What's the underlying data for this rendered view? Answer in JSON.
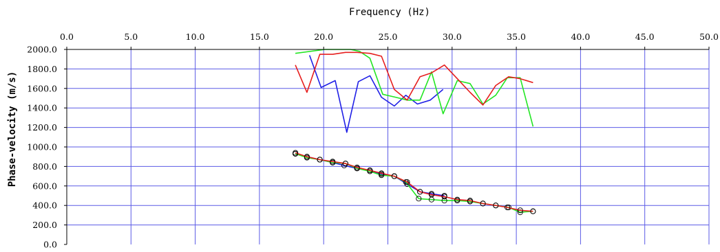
{
  "chart_data": {
    "type": "line",
    "title": "",
    "xlabel": "Frequency (Hz)",
    "ylabel": "Phase-velocity (m/s)",
    "xlim": [
      0,
      50
    ],
    "ylim": [
      0,
      2000
    ],
    "x_axis_position": "top",
    "grid": true,
    "x_ticks": [
      "0.0",
      "5.0",
      "10.0",
      "15.0",
      "20.0",
      "25.0",
      "30.0",
      "35.0",
      "40.0",
      "45.0",
      "50.0"
    ],
    "y_ticks": [
      "2000.0",
      "1800.0",
      "1600.0",
      "1400.0",
      "1200.0",
      "1000.0",
      "800.0",
      "600.0",
      "400.0",
      "200.0",
      "0.0"
    ],
    "colors": {
      "grid": "#5a5ae6",
      "axis": "#000000",
      "blue": "#1f1fe6",
      "green": "#22e622",
      "red": "#e61e1e"
    },
    "series": [
      {
        "color": "blue",
        "marker": "none",
        "x": [
          18.9,
          19.8,
          20.9,
          21.8,
          22.7,
          23.6,
          24.5,
          25.5,
          26.4,
          27.3,
          28.3,
          29.3
        ],
        "y": [
          1940,
          1610,
          1680,
          1150,
          1670,
          1730,
          1510,
          1420,
          1530,
          1440,
          1480,
          1590
        ]
      },
      {
        "color": "green",
        "marker": "none",
        "x": [
          17.8,
          20.1,
          22.1,
          22.8,
          23.6,
          24.6,
          25.6,
          26.5,
          27.5,
          28.4,
          29.3,
          30.4,
          31.4,
          32.4,
          33.4,
          34.3,
          35.3,
          36.3
        ],
        "y": [
          1960,
          2000,
          2000,
          1980,
          1910,
          1540,
          1510,
          1480,
          1480,
          1770,
          1340,
          1680,
          1650,
          1440,
          1530,
          1710,
          1710,
          1210
        ]
      },
      {
        "color": "red",
        "marker": "none",
        "x": [
          17.8,
          18.7,
          19.7,
          20.7,
          21.7,
          22.6,
          23.6,
          24.5,
          25.5,
          26.5,
          27.5,
          28.4,
          29.4,
          30.4,
          31.4,
          32.4,
          33.4,
          34.4,
          35.3,
          36.3
        ],
        "y": [
          1840,
          1560,
          1950,
          1950,
          1970,
          1970,
          1960,
          1930,
          1590,
          1480,
          1720,
          1760,
          1840,
          1700,
          1560,
          1430,
          1630,
          1720,
          1700,
          1660
        ]
      },
      {
        "color": "blue",
        "marker": "circle",
        "x": [
          17.8,
          18.7,
          19.7,
          20.7,
          21.6,
          22.6,
          23.6,
          24.5,
          25.5,
          26.5,
          27.5,
          28.4,
          29.4
        ],
        "y": [
          930,
          900,
          870,
          840,
          810,
          780,
          760,
          720,
          700,
          620,
          540,
          520,
          500
        ]
      },
      {
        "color": "green",
        "marker": "circle",
        "x": [
          17.8,
          18.7,
          19.7,
          20.7,
          21.7,
          22.6,
          23.6,
          24.5,
          25.5,
          26.4,
          27.4,
          28.4,
          29.4,
          30.4,
          31.4,
          32.4,
          33.4,
          34.4,
          35.3,
          36.3
        ],
        "y": [
          930,
          890,
          870,
          840,
          830,
          780,
          750,
          710,
          700,
          640,
          470,
          460,
          450,
          450,
          440,
          420,
          400,
          380,
          330,
          340
        ]
      },
      {
        "color": "red",
        "marker": "circle",
        "x": [
          17.8,
          18.7,
          19.7,
          20.7,
          21.7,
          22.6,
          23.6,
          24.5,
          25.5,
          26.5,
          27.5,
          28.4,
          29.4,
          30.4,
          31.4,
          32.4,
          33.4,
          34.3,
          35.3,
          36.3
        ],
        "y": [
          940,
          900,
          870,
          850,
          830,
          790,
          760,
          730,
          700,
          640,
          540,
          510,
          490,
          460,
          450,
          420,
          400,
          380,
          350,
          340
        ]
      }
    ]
  }
}
